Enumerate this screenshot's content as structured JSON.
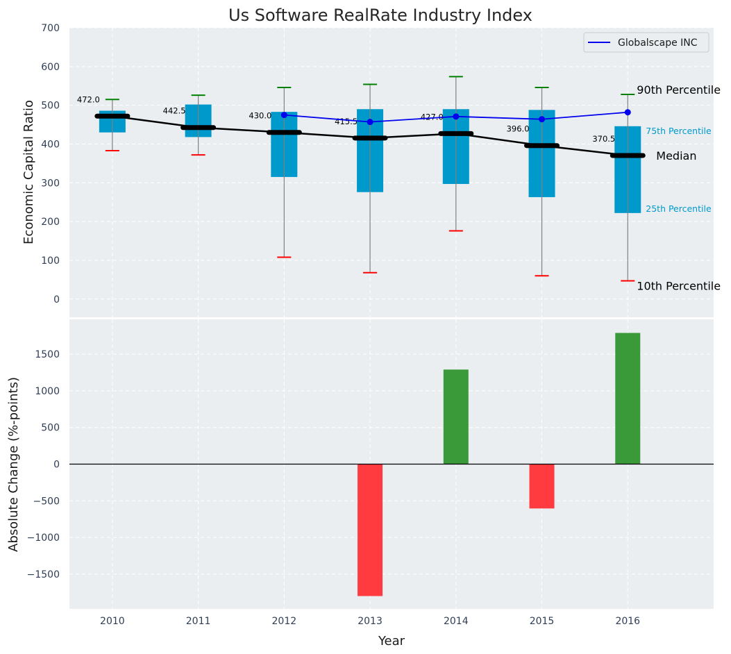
{
  "chart_data": [
    {
      "type": "box",
      "title": "Us Software RealRate Industry Index",
      "xlabel": "",
      "ylabel": "Economic Capital Ratio",
      "x": [
        2010,
        2011,
        2012,
        2013,
        2014,
        2015,
        2016
      ],
      "ylim": [
        -47,
        700
      ],
      "xlim": [
        2009.5,
        2017.0
      ],
      "yticks": [
        0,
        100,
        200,
        300,
        400,
        500,
        600,
        700
      ],
      "grid": true,
      "percentiles": {
        "p10": [
          383,
          372,
          108,
          68,
          176,
          60,
          47
        ],
        "p25": [
          430,
          418,
          315,
          276,
          297,
          263,
          222
        ],
        "median": [
          472.0,
          442.5,
          430.0,
          415.5,
          427.0,
          396.0,
          370.5
        ],
        "p75": [
          486,
          502,
          483,
          490,
          490,
          488,
          446
        ],
        "p90": [
          515,
          526,
          546,
          554,
          574,
          546,
          528
        ]
      },
      "median_labels": [
        "472.0",
        "442.5",
        "430.0",
        "415.5",
        "427.0",
        "396.0",
        "370.5"
      ],
      "series": [
        {
          "name": "Globalscape INC",
          "x": [
            2012,
            2013,
            2014,
            2015,
            2016
          ],
          "values": [
            475,
            457,
            471,
            464,
            482
          ],
          "color": "#0000ee"
        }
      ],
      "legend": {
        "position": "top-right",
        "entries": [
          "Globalscape INC"
        ]
      },
      "annotations": {
        "p90": "90th Percentile",
        "p75": "75th Percentile",
        "median": "Median",
        "p25": "25th Percentile",
        "p10": "10th Percentile"
      },
      "colors": {
        "box": "#0099cc",
        "median": "#000000",
        "p90_cap": "#008000",
        "p10_cap": "#ff0000",
        "whisker": "#808080",
        "background": "#eaeef0"
      }
    },
    {
      "type": "bar",
      "xlabel": "Year",
      "ylabel": "Absolute Change (%-points)",
      "categories": [
        "2010",
        "2011",
        "2012",
        "2013",
        "2014",
        "2015",
        "2016"
      ],
      "x": [
        2010,
        2011,
        2012,
        2013,
        2014,
        2015,
        2016
      ],
      "values": [
        null,
        null,
        null,
        -1800,
        1290,
        -605,
        1790
      ],
      "ylim": [
        -1975,
        1975
      ],
      "xlim": [
        2009.5,
        2017.0
      ],
      "yticks": [
        -1500,
        -1000,
        -500,
        0,
        500,
        1000,
        1500
      ],
      "ytick_labels": [
        "−1500",
        "−1000",
        "−500",
        "0",
        "500",
        "1000",
        "1500"
      ],
      "grid": true,
      "colors": {
        "positive": "#3a9a3a",
        "negative": "#ff3b3f",
        "zero_line": "#000000"
      }
    }
  ]
}
